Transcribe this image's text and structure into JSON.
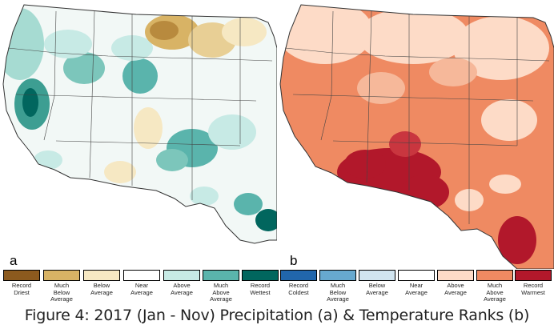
{
  "panels": [
    {
      "letter": "a"
    },
    {
      "letter": "b"
    }
  ],
  "legend": {
    "precipitation": [
      {
        "label": "Record\nDriest",
        "color": "#8c5a1e"
      },
      {
        "label": "Much\nBelow\nAverage",
        "color": "#d8b365"
      },
      {
        "label": "Below\nAverage",
        "color": "#f6e8c3"
      },
      {
        "label": "Near\nAverage",
        "color": "#ffffff"
      },
      {
        "label": "Above\nAverage",
        "color": "#c7eae5"
      },
      {
        "label": "Much\nAbove\nAverage",
        "color": "#5ab4ac"
      },
      {
        "label": "Record\nWettest",
        "color": "#01665e"
      }
    ],
    "temperature": [
      {
        "label": "Record\nColdest",
        "color": "#2166ac"
      },
      {
        "label": "Much\nBelow\nAverage",
        "color": "#67a9cf"
      },
      {
        "label": "Below\nAverage",
        "color": "#d1e5f0"
      },
      {
        "label": "Near\nAverage",
        "color": "#ffffff"
      },
      {
        "label": "Above\nAverage",
        "color": "#fddbc7"
      },
      {
        "label": "Much\nAbove\nAverage",
        "color": "#ef8a62"
      },
      {
        "label": "Record\nWarmest",
        "color": "#b2182b"
      }
    ]
  },
  "caption": "Figure 4: 2017 (Jan - Nov) Precipitation (a) & Temperature Ranks (b)"
}
